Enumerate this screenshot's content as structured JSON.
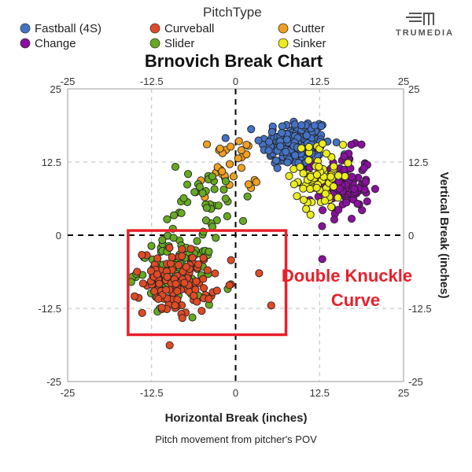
{
  "legend": {
    "title": "PitchType",
    "items": [
      {
        "name": "Fastball (4S)",
        "color": "#4472c4"
      },
      {
        "name": "Curveball",
        "color": "#e04a25"
      },
      {
        "name": "Cutter",
        "color": "#f0a020"
      },
      {
        "name": "Change",
        "color": "#8b0fa0"
      },
      {
        "name": "Slider",
        "color": "#66aa22"
      },
      {
        "name": "Sinker",
        "color": "#ecec1a"
      }
    ]
  },
  "logo": {
    "text": "TRUMEDIA"
  },
  "annotation": {
    "line1": "Double Knuckle",
    "line2": "Curve",
    "color": "#e8202a"
  },
  "chart_data": {
    "type": "scatter",
    "title": "Brnovich Break Chart",
    "xlabel": "Horizontal Break (inches)",
    "ylabel": "Vertical Break (inches)",
    "caption": "Pitch movement from pitcher's POV",
    "xlim": [
      -25,
      25
    ],
    "ylim": [
      -25,
      25
    ],
    "xticks": [
      -25,
      -12.5,
      0,
      12.5,
      25
    ],
    "yticks": [
      -25,
      -12.5,
      0,
      12.5,
      25
    ],
    "xtick_labels": [
      "-25",
      "-12.5",
      "0",
      "12.5",
      "25"
    ],
    "ytick_labels": [
      "-25",
      "-12.5",
      "0",
      "12.5",
      "25"
    ],
    "grid": true,
    "annotation_box": {
      "x": [
        -16,
        7.5
      ],
      "y": [
        -17,
        0.8
      ]
    },
    "series": [
      {
        "name": "Fastball (4S)",
        "color": "#4472c4",
        "clusters": [
          {
            "cx": 9,
            "cy": 15.5,
            "sx": 2.6,
            "sy": 2.3,
            "n": 170
          }
        ]
      },
      {
        "name": "Change",
        "color": "#8b0fa0",
        "clusters": [
          {
            "cx": 16,
            "cy": 8.5,
            "sx": 2.0,
            "sy": 3.0,
            "n": 110
          }
        ]
      },
      {
        "name": "Sinker",
        "color": "#ecec1a",
        "clusters": [
          {
            "cx": 12.5,
            "cy": 10,
            "sx": 1.8,
            "sy": 2.8,
            "n": 70
          }
        ]
      },
      {
        "name": "Cutter",
        "color": "#f0a020",
        "clusters": [
          {
            "cx": -1,
            "cy": 11.5,
            "sx": 2.2,
            "sy": 2.8,
            "n": 30
          }
        ]
      },
      {
        "name": "Slider",
        "color": "#66aa22",
        "clusters": [
          {
            "cx": -9,
            "cy": -6,
            "sx": 2.8,
            "sy": 2.8,
            "n": 110
          },
          {
            "cx": -4,
            "cy": 6,
            "sx": 3.0,
            "sy": 3.2,
            "n": 40
          }
        ]
      },
      {
        "name": "Curveball",
        "color": "#e04a25",
        "clusters": [
          {
            "cx": -8.5,
            "cy": -8,
            "sx": 2.6,
            "sy": 2.8,
            "n": 120
          }
        ],
        "points": [
          [
            3.5,
            -6.5
          ],
          [
            5.3,
            -12
          ]
        ]
      }
    ]
  }
}
